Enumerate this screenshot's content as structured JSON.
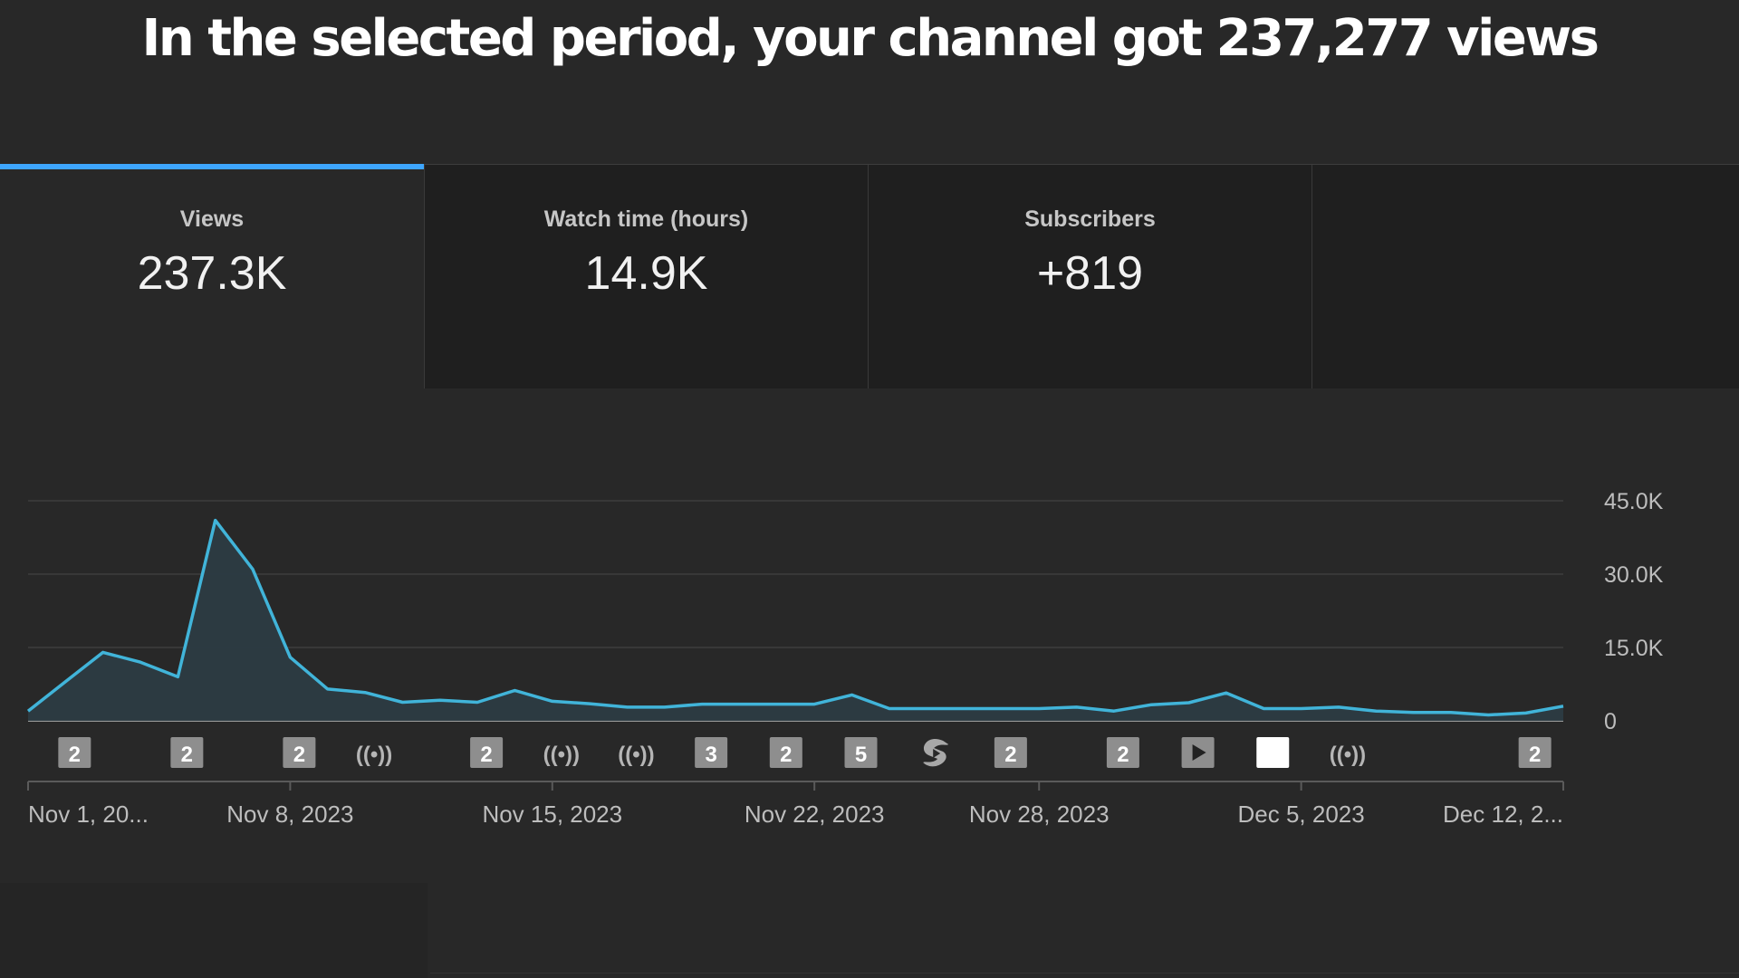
{
  "headline": "In the selected period, your channel got 237,277 views",
  "tabs": [
    {
      "label": "Views",
      "value": "237.3K",
      "selected": true
    },
    {
      "label": "Watch time (hours)",
      "value": "14.9K",
      "selected": false
    },
    {
      "label": "Subscribers",
      "value": "+819",
      "selected": false
    }
  ],
  "colors": {
    "accent": "#3ea6ff",
    "line": "#41b4d9",
    "background": "#282828"
  },
  "markers": [
    {
      "type": "count",
      "label": "2",
      "day": 1
    },
    {
      "type": "count",
      "label": "2",
      "day": 4
    },
    {
      "type": "count",
      "label": "2",
      "day": 7
    },
    {
      "type": "live",
      "label": "((•))",
      "day": 9
    },
    {
      "type": "count",
      "label": "2",
      "day": 12
    },
    {
      "type": "live",
      "label": "((•))",
      "day": 14
    },
    {
      "type": "live",
      "label": "((•))",
      "day": 16
    },
    {
      "type": "count",
      "label": "3",
      "day": 18
    },
    {
      "type": "count",
      "label": "2",
      "day": 20
    },
    {
      "type": "count",
      "label": "5",
      "day": 22
    },
    {
      "type": "shorts",
      "label": "",
      "day": 24
    },
    {
      "type": "count",
      "label": "2",
      "day": 26
    },
    {
      "type": "count",
      "label": "2",
      "day": 29
    },
    {
      "type": "video",
      "label": "",
      "day": 31
    },
    {
      "type": "blank",
      "label": "",
      "day": 33
    },
    {
      "type": "live",
      "label": "((•))",
      "day": 35
    },
    {
      "type": "count",
      "label": "2",
      "day": 40
    }
  ],
  "chart_data": {
    "type": "area",
    "x": [
      "Nov 1",
      "Nov 2",
      "Nov 3",
      "Nov 4",
      "Nov 5",
      "Nov 6",
      "Nov 7",
      "Nov 8",
      "Nov 9",
      "Nov 10",
      "Nov 11",
      "Nov 12",
      "Nov 13",
      "Nov 14",
      "Nov 15",
      "Nov 16",
      "Nov 17",
      "Nov 18",
      "Nov 19",
      "Nov 20",
      "Nov 21",
      "Nov 22",
      "Nov 23",
      "Nov 24",
      "Nov 25",
      "Nov 26",
      "Nov 27",
      "Nov 28",
      "Nov 29",
      "Nov 30",
      "Dec 1",
      "Dec 2",
      "Dec 3",
      "Dec 4",
      "Dec 5",
      "Dec 6",
      "Dec 7",
      "Dec 8",
      "Dec 9",
      "Dec 10",
      "Dec 11",
      "Dec 12"
    ],
    "series": [
      {
        "values": [
          2000,
          8000,
          14000,
          12000,
          9000,
          41000,
          31000,
          13000,
          6500,
          5800,
          3800,
          4200,
          3800,
          6200,
          4000,
          3500,
          2800,
          2800,
          3400,
          3400,
          3400,
          3400,
          5300,
          2500,
          2500,
          2500,
          2500,
          2500,
          2800,
          2000,
          3300,
          3700,
          5700,
          2500,
          2500,
          2800,
          2000,
          1700,
          1700,
          1200,
          1600,
          3000
        ]
      }
    ],
    "x_tick_labels": [
      "Nov 1, 20...",
      "Nov 8, 2023",
      "Nov 15, 2023",
      "Nov 22, 2023",
      "Nov 28, 2023",
      "Dec 5, 2023",
      "Dec 12, 2..."
    ],
    "x_tick_days": [
      0,
      7,
      14,
      21,
      27,
      34,
      41
    ],
    "y_tick_labels": [
      "0",
      "15.0K",
      "30.0K",
      "45.0K"
    ],
    "y_tick_values": [
      0,
      15000,
      30000,
      45000
    ],
    "ylim": [
      0,
      45000
    ],
    "grid": true
  }
}
